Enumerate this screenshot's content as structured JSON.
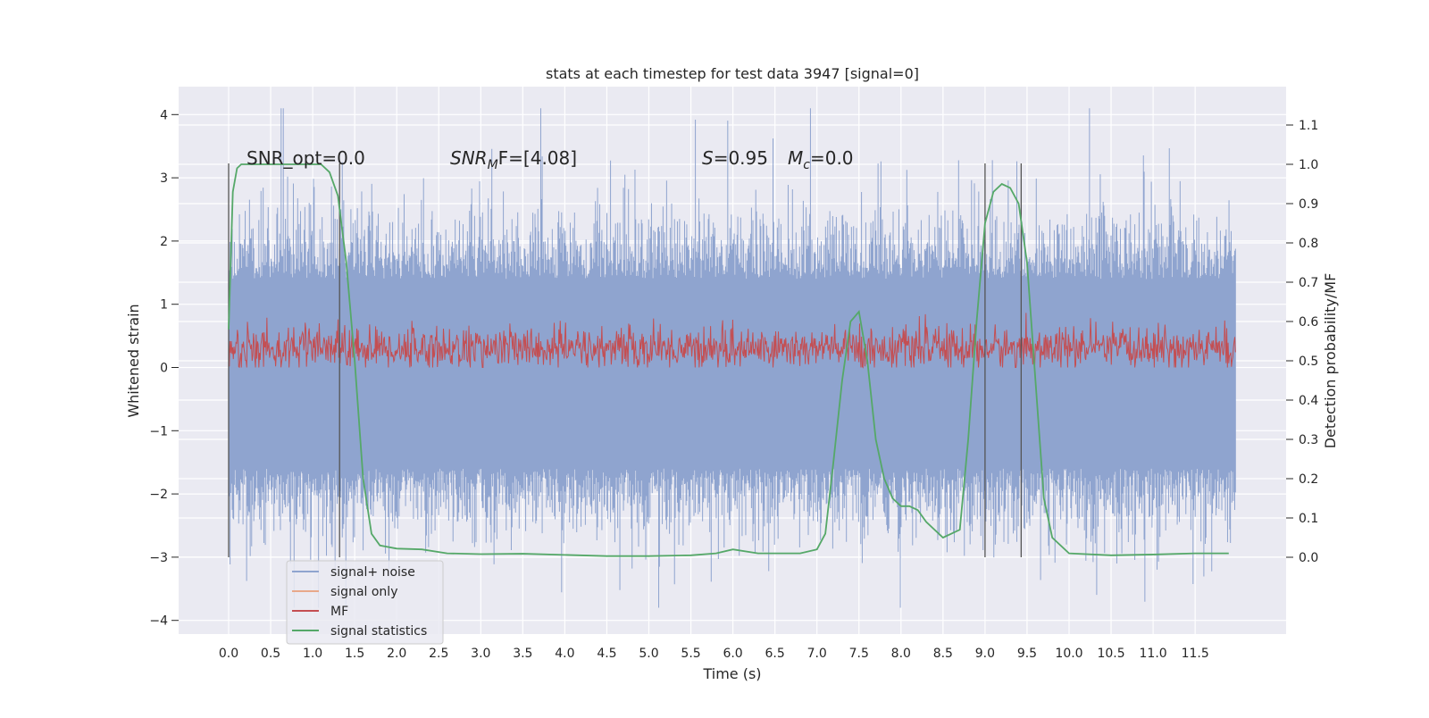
{
  "chart_data": {
    "type": "line",
    "title": "stats at each timestep for test data 3947 [signal=0]",
    "xlabel": "Time (s)",
    "ylabel": "Whitened strain",
    "ylabel_right": "Detection probability/MF",
    "xlim": [
      -0.58,
      12.58
    ],
    "ylim": [
      -4.2,
      4.4
    ],
    "ylim_right": [
      -0.2,
      1.18
    ],
    "x_ticks": [
      "0.0",
      "0.5",
      "1.0",
      "1.5",
      "2.0",
      "2.5",
      "3.0",
      "3.5",
      "4.0",
      "4.5",
      "5.0",
      "5.5",
      "6.0",
      "6.5",
      "7.0",
      "7.5",
      "8.0",
      "8.5",
      "9.0",
      "9.5",
      "10.0",
      "10.5",
      "11.0",
      "11.5"
    ],
    "y_ticks_left": [
      "4",
      "3",
      "2",
      "1",
      "0",
      "−1",
      "−2",
      "−3",
      "−4"
    ],
    "y_ticks_right": [
      "1.1",
      "1.0",
      "0.9",
      "0.8",
      "0.7",
      "0.6",
      "0.5",
      "0.4",
      "0.3",
      "0.2",
      "0.1",
      "0.0"
    ],
    "annotations": {
      "snr_opt": "SNR_opt=0.0",
      "snr_mf_a": "SNR",
      "snr_mf_sub": "M",
      "snr_mf_b": "F=[4.08]",
      "s_label": "S",
      "s_value": "=0.95",
      "mc_label": "M",
      "mc_sub": "c",
      "mc_value": "=0.0"
    },
    "vertical_markers_x": [
      0.0,
      1.32,
      9.0,
      9.43
    ],
    "grid": true,
    "legend_position": "lower-left",
    "series": [
      {
        "name": "signal+ noise",
        "axis": "left",
        "color": "#8fa4cf",
        "x_range": [
          0.0,
          11.98
        ],
        "envelope_upper": 1.4,
        "envelope_lower": -1.6,
        "peak_max": 4.1,
        "trough_min": -3.8
      },
      {
        "name": "signal only",
        "axis": "left",
        "color": "#e8a88a",
        "values": []
      },
      {
        "name": "MF",
        "axis": "left",
        "color": "#c44e52",
        "x_range": [
          0.0,
          11.98
        ],
        "baseline": 0.3,
        "band": [
          0.05,
          0.7
        ]
      },
      {
        "name": "signal statistics",
        "axis": "right",
        "color": "#55a868",
        "x": [
          0.0,
          0.05,
          0.1,
          0.15,
          0.2,
          0.3,
          0.5,
          0.8,
          1.0,
          1.1,
          1.2,
          1.3,
          1.4,
          1.5,
          1.6,
          1.7,
          1.8,
          2.0,
          2.3,
          2.6,
          3.0,
          3.5,
          4.0,
          4.5,
          5.0,
          5.5,
          5.8,
          6.0,
          6.3,
          6.8,
          7.0,
          7.1,
          7.2,
          7.3,
          7.4,
          7.5,
          7.6,
          7.7,
          7.8,
          7.9,
          8.0,
          8.1,
          8.2,
          8.3,
          8.5,
          8.7,
          8.8,
          8.9,
          9.0,
          9.1,
          9.2,
          9.3,
          9.4,
          9.5,
          9.6,
          9.7,
          9.8,
          10.0,
          10.5,
          11.0,
          11.5,
          11.9
        ],
        "y": [
          0.58,
          0.93,
          0.99,
          1.0,
          1.0,
          1.0,
          1.0,
          1.0,
          1.0,
          1.0,
          0.98,
          0.92,
          0.75,
          0.5,
          0.2,
          0.06,
          0.03,
          0.022,
          0.02,
          0.01,
          0.008,
          0.009,
          0.006,
          0.003,
          0.003,
          0.005,
          0.01,
          0.02,
          0.01,
          0.01,
          0.02,
          0.06,
          0.25,
          0.45,
          0.6,
          0.625,
          0.5,
          0.3,
          0.2,
          0.15,
          0.13,
          0.13,
          0.12,
          0.09,
          0.05,
          0.07,
          0.3,
          0.6,
          0.85,
          0.93,
          0.95,
          0.94,
          0.9,
          0.75,
          0.45,
          0.15,
          0.05,
          0.01,
          0.005,
          0.007,
          0.01,
          0.01
        ]
      }
    ]
  }
}
